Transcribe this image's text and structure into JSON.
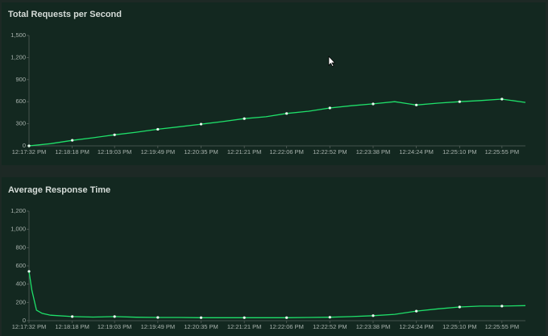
{
  "chart_data": [
    {
      "type": "line",
      "title": "Total Requests per Second",
      "x": [
        "12:17:32 PM",
        "12:17:55 PM",
        "12:18:18 PM",
        "12:18:40 PM",
        "12:19:03 PM",
        "12:19:26 PM",
        "12:19:49 PM",
        "12:20:12 PM",
        "12:20:35 PM",
        "12:20:58 PM",
        "12:21:21 PM",
        "12:21:44 PM",
        "12:22:06 PM",
        "12:22:29 PM",
        "12:22:52 PM",
        "12:23:15 PM",
        "12:23:38 PM",
        "12:24:01 PM",
        "12:24:24 PM",
        "12:24:47 PM",
        "12:25:10 PM",
        "12:25:32 PM",
        "12:25:55 PM",
        "12:26:20 PM"
      ],
      "series": [
        {
          "color": "#1fe06a",
          "values": [
            0,
            30,
            75,
            110,
            150,
            185,
            225,
            260,
            295,
            330,
            370,
            395,
            440,
            470,
            515,
            545,
            570,
            600,
            555,
            580,
            600,
            615,
            635,
            590
          ]
        }
      ],
      "xlim": [
        "12:17:32 PM",
        "12:26:20 PM"
      ],
      "xticks": [
        "12:17:32 PM",
        "12:18:18 PM",
        "12:19:03 PM",
        "12:19:49 PM",
        "12:20:35 PM",
        "12:21:21 PM",
        "12:22:06 PM",
        "12:22:52 PM",
        "12:23:38 PM",
        "12:24:24 PM",
        "12:25:10 PM",
        "12:25:55 PM"
      ],
      "ylim": [
        0,
        1500
      ],
      "yticks": [
        0,
        300,
        600,
        900,
        {
          "value": 1200,
          "label": "1,200"
        },
        {
          "value": 1500,
          "label": "1,500"
        }
      ]
    },
    {
      "type": "line",
      "title": "Average Response Time",
      "x": [
        "12:17:32 PM",
        "12:17:35 PM",
        "12:17:40 PM",
        "12:17:46 PM",
        "12:17:55 PM",
        "12:18:18 PM",
        "12:18:40 PM",
        "12:19:03 PM",
        "12:19:26 PM",
        "12:19:49 PM",
        "12:20:12 PM",
        "12:20:35 PM",
        "12:20:58 PM",
        "12:21:21 PM",
        "12:21:44 PM",
        "12:22:06 PM",
        "12:22:29 PM",
        "12:22:52 PM",
        "12:23:15 PM",
        "12:23:38 PM",
        "12:24:01 PM",
        "12:24:24 PM",
        "12:24:47 PM",
        "12:25:10 PM",
        "12:25:32 PM",
        "12:25:55 PM",
        "12:26:20 PM"
      ],
      "series": [
        {
          "color": "#1fe06a",
          "values": [
            540,
            335,
            115,
            80,
            60,
            45,
            40,
            45,
            38,
            35,
            35,
            33,
            33,
            33,
            33,
            33,
            35,
            38,
            45,
            55,
            70,
            105,
            130,
            150,
            160,
            160,
            165
          ]
        }
      ],
      "xlim": [
        "12:17:32 PM",
        "12:26:20 PM"
      ],
      "xticks": [
        "12:17:32 PM",
        "12:18:18 PM",
        "12:19:03 PM",
        "12:19:49 PM",
        "12:20:35 PM",
        "12:21:21 PM",
        "12:22:06 PM",
        "12:22:52 PM",
        "12:23:38 PM",
        "12:24:24 PM",
        "12:25:10 PM",
        "12:25:55 PM"
      ],
      "ylim": [
        0,
        1200
      ],
      "yticks": [
        0,
        200,
        400,
        600,
        800,
        {
          "value": 1000,
          "label": "1,000"
        },
        {
          "value": 1200,
          "label": "1,200"
        }
      ]
    }
  ]
}
